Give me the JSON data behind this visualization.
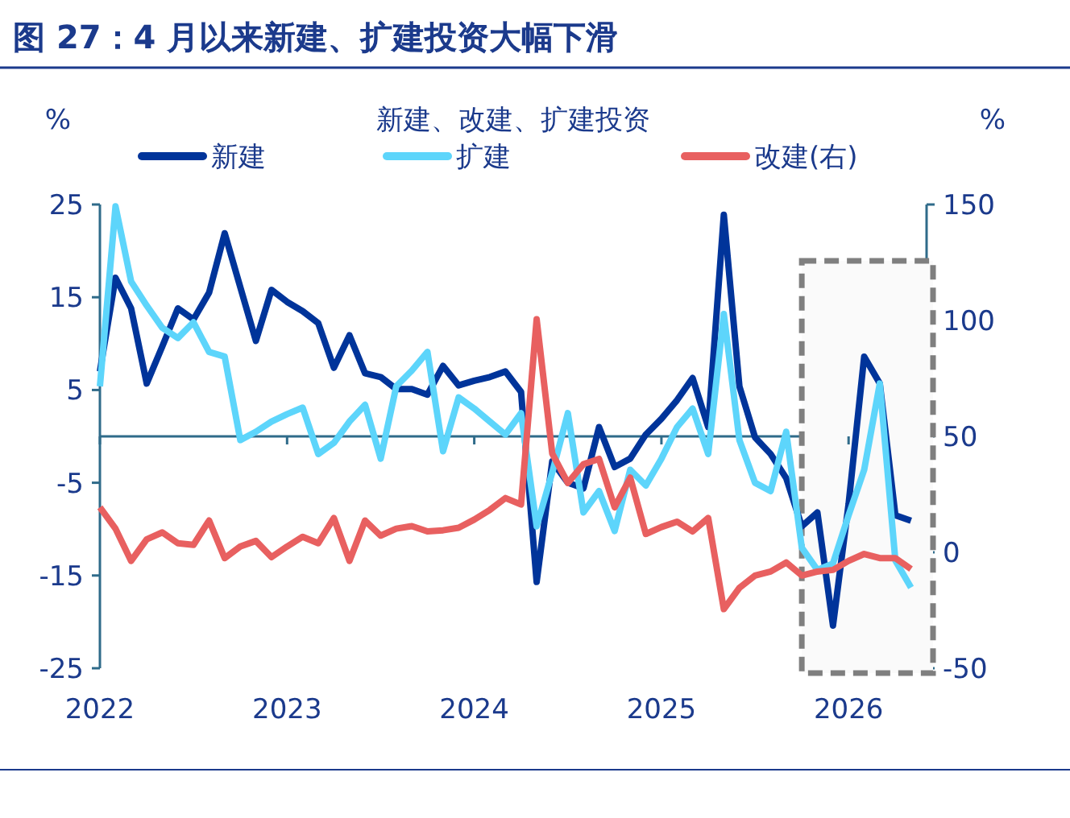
{
  "chart_data": {
    "type": "line",
    "title": "图 27：4 月以来新建、扩建投资大幅下滑",
    "subtitle": "新建、改建、扩建投资",
    "ylabel": "%",
    "y2label": "%",
    "x": [
      "2022-01",
      "2022-02",
      "2022-03",
      "2022-04",
      "2022-05",
      "2022-06",
      "2022-07",
      "2022-08",
      "2022-09",
      "2022-10",
      "2022-11",
      "2022-12",
      "2023-01",
      "2023-02",
      "2023-03",
      "2023-04",
      "2023-05",
      "2023-06",
      "2023-07",
      "2023-08",
      "2023-09",
      "2023-10",
      "2023-11",
      "2023-12",
      "2024-01",
      "2024-02",
      "2024-03",
      "2024-04",
      "2024-05",
      "2024-06",
      "2024-07",
      "2024-08",
      "2024-09",
      "2024-10",
      "2024-11",
      "2024-12",
      "2025-01",
      "2025-02",
      "2025-03",
      "2025-04",
      "2025-05",
      "2025-06",
      "2025-07",
      "2025-08",
      "2025-09",
      "2025-10",
      "2025-11",
      "2025-12",
      "2026-01",
      "2026-02",
      "2026-03",
      "2026-04",
      "2026-05"
    ],
    "xlim": [
      "2022-01",
      "2026-06"
    ],
    "xticks": [
      {
        "value": "2022-01",
        "label": "2022"
      },
      {
        "value": "2023-01",
        "label": "2023"
      },
      {
        "value": "2024-01",
        "label": "2024"
      },
      {
        "value": "2025-01",
        "label": "2025"
      },
      {
        "value": "2026-01",
        "label": "2026"
      }
    ],
    "ylim": [
      -25,
      25
    ],
    "yticks": [
      -25,
      -15,
      -5,
      5,
      15,
      25
    ],
    "y2lim": [
      -50,
      150
    ],
    "y2ticks": [
      -50,
      0,
      50,
      100,
      150
    ],
    "legend": "top",
    "series": [
      {
        "name": "新建",
        "color": "#00349a",
        "values": [
          7,
          17.1,
          13.8,
          5.7,
          9.7,
          13.8,
          12.6,
          15.5,
          21.9,
          16.1,
          10.3,
          15.8,
          14.5,
          13.5,
          12.2,
          7.4,
          10.9,
          6.8,
          6.4,
          5.1,
          5.1,
          4.5,
          7.6,
          5.5,
          6.0,
          6.4,
          7.0,
          4.8,
          -15.7,
          -2.7,
          -5.0,
          -5.6,
          1.0,
          -3.3,
          -2.4,
          0.2,
          1.9,
          3.9,
          6.3,
          1.0,
          23.9,
          5.4,
          -0.1,
          -1.9,
          -4.5,
          -9.7,
          -8.2,
          -20.4,
          -7.3,
          8.6,
          5.7,
          -8.5,
          -9.1
        ]
      },
      {
        "name": "扩建",
        "color": "#5dd5fb",
        "values": [
          5.4,
          24.8,
          16.7,
          14.1,
          11.7,
          10.6,
          12.3,
          9.1,
          8.6,
          -0.4,
          0.5,
          1.6,
          2.4,
          3.1,
          -1.9,
          -0.7,
          1.6,
          3.4,
          -2.4,
          5.4,
          7.1,
          9.1,
          -1.6,
          4.2,
          3.0,
          1.6,
          0.2,
          2.5,
          -9.7,
          -3.9,
          2.5,
          -8.2,
          -5.9,
          -10.2,
          -3.6,
          -5.3,
          -2.4,
          1.0,
          3.0,
          -1.9,
          13.2,
          -0.4,
          -5.0,
          -5.9,
          0.5,
          -12.0,
          -14.4,
          -13.7,
          -8.5,
          -3.6,
          5.7,
          -13.4,
          -16.3
        ]
      },
      {
        "name": "改建(右)",
        "color": "#e86060",
        "axis": "y2",
        "values": [
          19.4,
          10.2,
          -3.7,
          5.6,
          8.6,
          3.9,
          3.2,
          13.7,
          -2.5,
          2.5,
          4.9,
          -2.1,
          2.5,
          6.7,
          3.9,
          14.8,
          -3.7,
          13.7,
          7.2,
          10.2,
          11.3,
          9.0,
          9.5,
          10.6,
          14.1,
          18.3,
          23.4,
          20.6,
          100.5,
          42.6,
          29.9,
          38.0,
          40.3,
          19.4,
          32.2,
          7.9,
          10.9,
          13.2,
          9.0,
          14.8,
          -24.5,
          -15.3,
          -10.0,
          -8.3,
          -4.4,
          -10.0,
          -8.3,
          -7.6,
          -3.7,
          -0.7,
          -2.5,
          -2.5,
          -7.2
        ]
      }
    ],
    "ref_lines": [
      {
        "axis": "y",
        "value": 0,
        "color": "#2f6b8a"
      }
    ],
    "bands": [
      {
        "axis": "x",
        "from": "2025-10",
        "to": "2026-06",
        "color": "#7f7f7f"
      }
    ]
  }
}
